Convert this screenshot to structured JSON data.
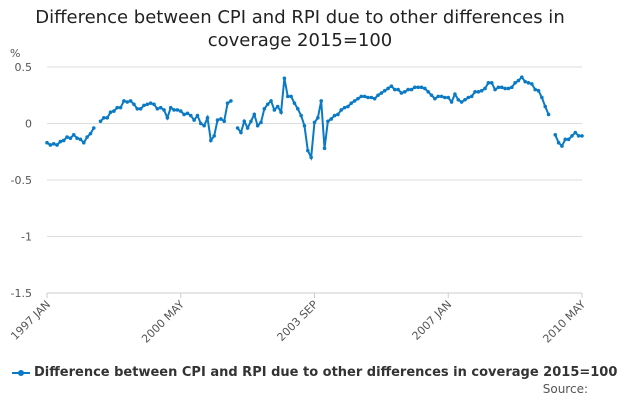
{
  "chart_data": {
    "type": "line",
    "title": "Difference between CPI and RPI due to other differences in coverage 2015=100",
    "ylabel": "%",
    "ylim": [
      -1.5,
      0.5
    ],
    "yticks": [
      "0.5",
      "0",
      "-0.5",
      "-1",
      "-1.5"
    ],
    "ytick_values": [
      0.5,
      0,
      -0.5,
      -1,
      -1.5
    ],
    "xticks": [
      "1997 JAN",
      "2000 MAY",
      "2003 SEP",
      "2007 JAN",
      "2010 MAY"
    ],
    "grid": true,
    "legend_placement": "bottom",
    "color": "#0a7ac4",
    "x": [
      "1997 JAN",
      "1997 FEB",
      "1997 MAR",
      "1997 APR",
      "1997 MAY",
      "1997 JUN",
      "1997 JUL",
      "1997 AUG",
      "1997 SEP",
      "1997 OCT",
      "1997 NOV",
      "1997 DEC",
      "1998 JAN",
      "1998 FEB",
      "1998 MAR",
      "1998 APR",
      "1998 MAY",
      "1998 JUN",
      "1998 JUL",
      "1998 AUG",
      "1998 SEP",
      "1998 OCT",
      "1998 NOV",
      "1998 DEC",
      "1999 JAN",
      "1999 FEB",
      "1999 MAR",
      "1999 APR",
      "1999 MAY",
      "1999 JUN",
      "1999 JUL",
      "1999 AUG",
      "1999 SEP",
      "1999 OCT",
      "1999 NOV",
      "1999 DEC",
      "2000 JAN",
      "2000 FEB",
      "2000 MAR",
      "2000 APR",
      "2000 MAY",
      "2000 JUN",
      "2000 JUL",
      "2000 AUG",
      "2000 SEP",
      "2000 OCT",
      "2000 NOV",
      "2000 DEC",
      "2001 JAN",
      "2001 FEB",
      "2001 MAR",
      "2001 APR",
      "2001 MAY",
      "2001 JUN",
      "2001 JUL",
      "2001 AUG",
      "2001 SEP",
      "2001 OCT",
      "2001 NOV",
      "2001 DEC",
      "2002 JAN",
      "2002 FEB",
      "2002 MAR",
      "2002 APR",
      "2002 MAY",
      "2002 JUN",
      "2002 JUL",
      "2002 AUG",
      "2002 SEP",
      "2002 OCT",
      "2002 NOV",
      "2002 DEC",
      "2003 JAN",
      "2003 FEB",
      "2003 MAR",
      "2003 APR",
      "2003 MAY",
      "2003 JUN",
      "2003 JUL",
      "2003 AUG",
      "2003 SEP",
      "2003 OCT",
      "2003 NOV",
      "2003 DEC",
      "2004 JAN",
      "2004 FEB",
      "2004 MAR",
      "2004 APR",
      "2004 MAY",
      "2004 JUN",
      "2004 JUL",
      "2004 AUG",
      "2004 SEP",
      "2004 OCT",
      "2004 NOV",
      "2004 DEC",
      "2005 JAN",
      "2005 FEB",
      "2005 MAR",
      "2005 APR",
      "2005 MAY",
      "2005 JUN",
      "2005 JUL",
      "2005 AUG",
      "2005 SEP",
      "2005 OCT",
      "2005 NOV",
      "2005 DEC",
      "2006 JAN",
      "2006 FEB",
      "2006 MAR",
      "2006 APR",
      "2006 MAY",
      "2006 JUN",
      "2006 JUL",
      "2006 AUG",
      "2006 SEP",
      "2006 OCT",
      "2006 NOV",
      "2006 DEC",
      "2007 JAN",
      "2007 FEB",
      "2007 MAR",
      "2007 APR",
      "2007 MAY",
      "2007 JUN",
      "2007 JUL",
      "2007 AUG",
      "2007 SEP",
      "2007 OCT",
      "2007 NOV",
      "2007 DEC",
      "2008 JAN",
      "2008 FEB",
      "2008 MAR",
      "2008 APR",
      "2008 MAY",
      "2008 JUN",
      "2008 JUL",
      "2008 AUG",
      "2008 SEP",
      "2008 OCT",
      "2008 NOV",
      "2008 DEC",
      "2009 JAN",
      "2009 FEB",
      "2009 MAR",
      "2009 APR",
      "2009 MAY",
      "2009 JUN",
      "2009 JUL",
      "2009 AUG",
      "2009 SEP",
      "2009 OCT",
      "2009 NOV",
      "2009 DEC",
      "2010 JAN",
      "2010 FEB",
      "2010 MAR",
      "2010 APR",
      "2010 MAY"
    ],
    "series": [
      {
        "name": "Difference between CPI and RPI due to other differences in coverage 2015=100",
        "values": [
          -0.17,
          -0.19,
          -0.18,
          -0.19,
          -0.16,
          -0.15,
          -0.12,
          -0.13,
          -0.1,
          -0.13,
          -0.14,
          -0.17,
          -0.12,
          -0.09,
          -0.04,
          null,
          0.02,
          0.05,
          0.05,
          0.1,
          0.11,
          0.14,
          0.14,
          0.2,
          0.19,
          0.2,
          0.17,
          0.13,
          0.13,
          0.16,
          0.17,
          0.18,
          0.17,
          0.13,
          0.14,
          0.12,
          0.05,
          0.14,
          0.12,
          0.12,
          0.11,
          0.08,
          0.09,
          0.07,
          0.03,
          0.07,
          0,
          -0.02,
          0.05,
          -0.15,
          -0.11,
          0.03,
          0.04,
          0.02,
          0.18,
          0.2,
          null,
          -0.04,
          -0.08,
          0.02,
          -0.04,
          0.02,
          0.08,
          -0.02,
          0.01,
          0.13,
          0.17,
          0.2,
          0.12,
          0.15,
          0.1,
          0.4,
          0.24,
          0.24,
          0.18,
          0.13,
          0.07,
          -0.02,
          -0.24,
          -0.3,
          0.01,
          0.05,
          0.2,
          -0.22,
          0.02,
          0.04,
          0.07,
          0.08,
          0.12,
          0.14,
          0.15,
          0.18,
          0.2,
          0.22,
          0.24,
          0.24,
          0.23,
          0.23,
          0.22,
          0.25,
          0.27,
          0.29,
          0.31,
          0.33,
          0.3,
          0.3,
          0.27,
          0.28,
          0.3,
          0.3,
          0.32,
          0.32,
          0.32,
          0.31,
          0.28,
          0.25,
          0.22,
          0.24,
          0.24,
          0.23,
          0.23,
          0.19,
          0.26,
          0.21,
          0.19,
          0.21,
          0.23,
          0.24,
          0.28,
          0.28,
          0.29,
          0.31,
          0.36,
          0.36,
          0.3,
          0.32,
          0.32,
          0.31,
          0.31,
          0.32,
          0.36,
          0.38,
          0.41,
          0.37,
          0.36,
          0.35,
          0.3,
          0.29,
          0.23,
          0.15,
          0.08,
          null,
          -0.1,
          -0.17,
          -0.2,
          -0.14,
          -0.14,
          -0.11,
          -0.08,
          -0.11,
          -0.11
        ]
      }
    ]
  },
  "legend": {
    "label": "Difference between CPI and RPI due to other differences in coverage 2015=100"
  },
  "source": {
    "label": "Source:"
  }
}
